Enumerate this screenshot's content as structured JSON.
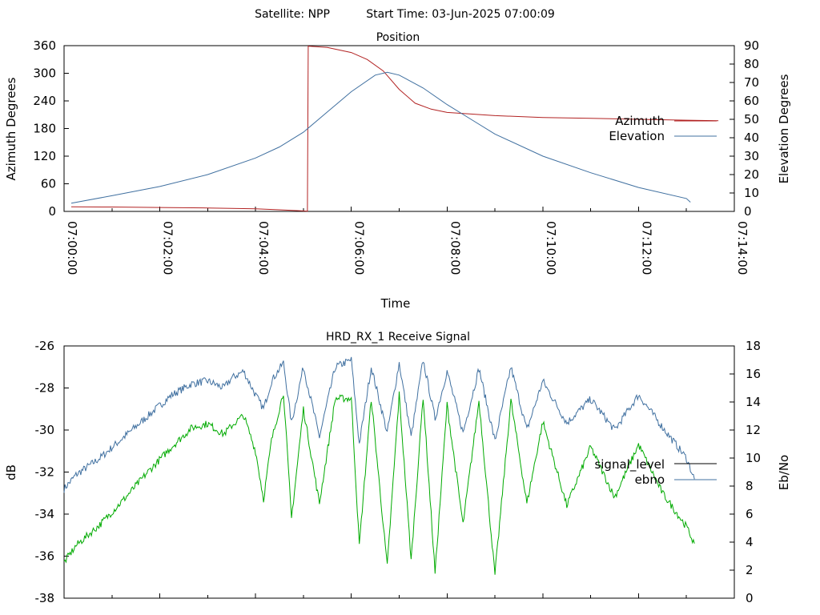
{
  "header": {
    "satellite_label": "Satellite: NPP",
    "start_time_label": "Start Time: 03-Jun-2025 07:00:09"
  },
  "chart_data": [
    {
      "type": "line",
      "title": "Position",
      "xlabel": "Time",
      "ylabel": "Azimuth Degrees",
      "y2label": "Elevation Degrees",
      "xlim": [
        "07:00:00",
        "07:14:00"
      ],
      "x_ticks": [
        "07:00:00",
        "07:02:00",
        "07:04:00",
        "07:06:00",
        "07:08:00",
        "07:10:00",
        "07:12:00",
        "07:14:00"
      ],
      "ylim": [
        0,
        360
      ],
      "y_ticks": [
        0,
        60,
        120,
        180,
        240,
        300,
        360
      ],
      "y2lim": [
        0,
        90
      ],
      "y2_ticks": [
        0,
        10,
        20,
        30,
        40,
        50,
        60,
        70,
        80,
        90
      ],
      "legend_position": "right",
      "series": [
        {
          "name": "Azimuth",
          "axis": "left",
          "color": "#b22222",
          "x": [
            "07:00:09",
            "07:01:00",
            "07:02:00",
            "07:03:00",
            "07:04:00",
            "07:04:30",
            "07:05:00",
            "07:05:05",
            "07:05:06",
            "07:05:30",
            "07:06:00",
            "07:06:20",
            "07:06:40",
            "07:07:00",
            "07:07:20",
            "07:07:40",
            "07:08:00",
            "07:09:00",
            "07:10:00",
            "07:11:00",
            "07:12:00",
            "07:13:00",
            "07:13:40"
          ],
          "values": [
            10,
            9.5,
            8.5,
            7.5,
            5.5,
            3.5,
            1,
            0.5,
            359,
            356,
            345,
            330,
            305,
            265,
            235,
            222,
            215,
            208,
            204,
            202,
            200,
            198,
            197
          ]
        },
        {
          "name": "Elevation",
          "axis": "right",
          "color": "#4070a0",
          "x": [
            "07:00:09",
            "07:01:00",
            "07:02:00",
            "07:03:00",
            "07:04:00",
            "07:04:30",
            "07:05:00",
            "07:05:30",
            "07:06:00",
            "07:06:30",
            "07:06:45",
            "07:07:00",
            "07:07:30",
            "07:08:00",
            "07:08:30",
            "07:09:00",
            "07:10:00",
            "07:11:00",
            "07:12:00",
            "07:13:00",
            "07:13:05"
          ],
          "values": [
            4.5,
            8.5,
            13.5,
            20,
            29,
            35,
            43,
            54,
            65,
            74,
            75.5,
            74,
            67,
            58,
            50,
            42,
            30,
            21,
            13,
            7,
            5
          ]
        }
      ]
    },
    {
      "type": "line",
      "title": "HRD_RX_1 Receive Signal",
      "ylabel": "dB",
      "y2label": "Eb/No",
      "ylim": [
        -38,
        -26
      ],
      "y_ticks": [
        -38,
        -36,
        -34,
        -32,
        -30,
        -28,
        -26
      ],
      "y2lim": [
        0,
        18
      ],
      "y2_ticks": [
        0,
        2,
        4,
        6,
        8,
        10,
        12,
        14,
        16,
        18
      ],
      "x_minor_ticks_count": 15,
      "legend_position": "right",
      "series": [
        {
          "name": "signal_level",
          "axis": "left",
          "color": "#000000",
          "values": []
        },
        {
          "name": "ebno",
          "axis": "right",
          "color": "#4070a0",
          "x": [
            "07:00:00",
            "07:00:15",
            "07:00:45",
            "07:01:15",
            "07:01:45",
            "07:02:15",
            "07:02:40",
            "07:03:00",
            "07:03:20",
            "07:03:30",
            "07:03:45",
            "07:04:00",
            "07:04:10",
            "07:04:20",
            "07:04:35",
            "07:04:45",
            "07:05:00",
            "07:05:20",
            "07:05:40",
            "07:06:00",
            "07:06:10",
            "07:06:25",
            "07:06:45",
            "07:07:00",
            "07:07:15",
            "07:07:30",
            "07:07:45",
            "07:08:00",
            "07:08:20",
            "07:08:40",
            "07:09:00",
            "07:09:20",
            "07:09:40",
            "07:10:00",
            "07:10:30",
            "07:11:00",
            "07:11:30",
            "07:12:00",
            "07:12:30",
            "07:13:00",
            "07:13:10"
          ],
          "values": [
            7.8,
            8.8,
            10,
            11.5,
            13,
            14.5,
            15.3,
            15.5,
            15,
            15.7,
            16.2,
            14.5,
            13.5,
            15.5,
            16.8,
            12.5,
            16.5,
            11.5,
            16.5,
            17,
            11,
            16.5,
            11.8,
            16.8,
            11.5,
            17,
            12.8,
            16.2,
            11.8,
            16.4,
            11.2,
            16.5,
            12,
            15.5,
            12.5,
            14.2,
            12,
            14.5,
            12.2,
            10,
            8.5
          ]
        },
        {
          "name": "",
          "axis": "left",
          "color": "#00aa00",
          "x": [
            "07:00:00",
            "07:00:15",
            "07:00:45",
            "07:01:15",
            "07:01:45",
            "07:02:15",
            "07:02:40",
            "07:03:00",
            "07:03:20",
            "07:03:30",
            "07:03:45",
            "07:04:00",
            "07:04:10",
            "07:04:20",
            "07:04:35",
            "07:04:45",
            "07:05:00",
            "07:05:20",
            "07:05:40",
            "07:06:00",
            "07:06:10",
            "07:06:25",
            "07:06:45",
            "07:07:00",
            "07:07:15",
            "07:07:30",
            "07:07:45",
            "07:08:00",
            "07:08:20",
            "07:08:40",
            "07:09:00",
            "07:09:20",
            "07:09:40",
            "07:10:00",
            "07:10:30",
            "07:11:00",
            "07:11:30",
            "07:12:00",
            "07:12:30",
            "07:13:00",
            "07:13:10"
          ],
          "values": [
            -36.3,
            -35.5,
            -34.5,
            -33.3,
            -32,
            -30.8,
            -29.9,
            -29.7,
            -30.2,
            -29.8,
            -29.3,
            -31,
            -33.3,
            -30.5,
            -28.2,
            -34.2,
            -29,
            -33.5,
            -28.5,
            -28.5,
            -35.5,
            -28.5,
            -36.5,
            -28.3,
            -36.2,
            -28.4,
            -36.8,
            -28.8,
            -34.5,
            -28.6,
            -36.9,
            -28.6,
            -33.5,
            -29.6,
            -33.6,
            -30.8,
            -33.2,
            -30.7,
            -33,
            -34.6,
            -35.4
          ]
        }
      ]
    }
  ]
}
